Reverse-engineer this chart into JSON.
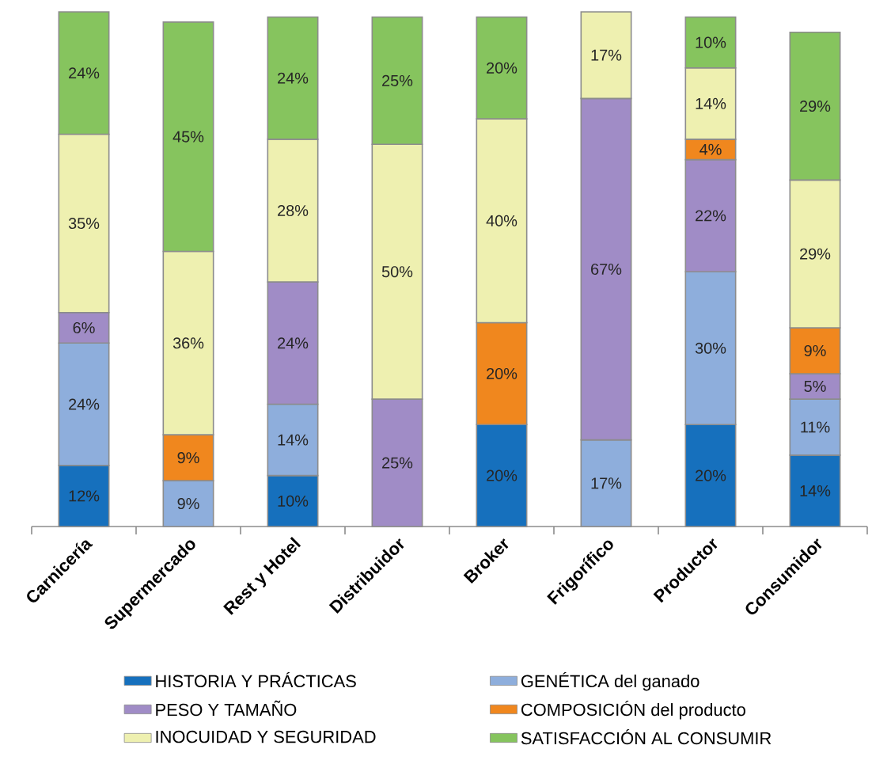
{
  "chart_data": {
    "type": "bar",
    "stacked": true,
    "legend": "bottom",
    "categories": [
      "Carnicería",
      "Supermercado",
      "Rest y Hotel",
      "Distribuidor",
      "Broker",
      "Frigorífico",
      "Productor",
      "Consumidor"
    ],
    "series": [
      {
        "name": "HISTORIA Y PRÁCTICAS",
        "color": "#1670bd",
        "values": [
          12,
          null,
          10,
          null,
          20,
          null,
          20,
          14
        ],
        "value_labels": [
          "12%",
          null,
          "10%",
          null,
          "20%",
          null,
          "20%",
          "14%"
        ]
      },
      {
        "name": "GENÉTICA del ganado",
        "color": "#8eaedc",
        "values": [
          24,
          9,
          14,
          null,
          null,
          17,
          30,
          11
        ],
        "value_labels": [
          "24%",
          "9%",
          "14%",
          null,
          null,
          "17%",
          "30%",
          "11%"
        ]
      },
      {
        "name": "PESO Y TAMAÑO",
        "color": "#a08cc6",
        "values": [
          6,
          null,
          24,
          25,
          null,
          67,
          22,
          5
        ],
        "value_labels": [
          "6%",
          null,
          "24%",
          "25%",
          null,
          "67%",
          "22%",
          "5%"
        ]
      },
      {
        "name": "COMPOSICIÓN del producto",
        "color": "#f0871e",
        "values": [
          null,
          9,
          null,
          null,
          20,
          null,
          4,
          9
        ],
        "value_labels": [
          null,
          "9%",
          null,
          null,
          "20%",
          null,
          "4%",
          "9%"
        ]
      },
      {
        "name": "INOCUIDAD Y SEGURIDAD",
        "color": "#eef0b0",
        "values": [
          35,
          36,
          28,
          50,
          40,
          17,
          14,
          29
        ],
        "value_labels": [
          "35%",
          "36%",
          "28%",
          "50%",
          "40%",
          "17%",
          "14%",
          "29%"
        ]
      },
      {
        "name": "SATISFACCIÓN AL CONSUMIR",
        "color": "#86c45e",
        "values": [
          24,
          45,
          24,
          25,
          20,
          null,
          10,
          29
        ],
        "value_labels": [
          "24%",
          "45%",
          "24%",
          "25%",
          "20%",
          null,
          "10%",
          "29%"
        ]
      }
    ]
  }
}
